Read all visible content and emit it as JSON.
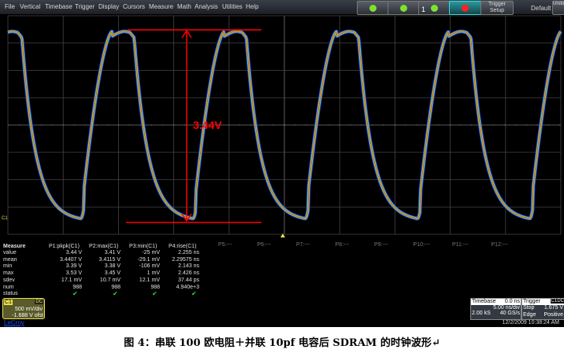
{
  "menu": [
    "File",
    "Vertical",
    "Timebase",
    "Trigger",
    "Display",
    "Cursors",
    "Measure",
    "Math",
    "Analysis",
    "Utilities",
    "Help"
  ],
  "toolbar": {
    "trigger_setup": "Trigger Setup",
    "default": "Default",
    "undo": "Undo",
    "button1_num": "1"
  },
  "annotation": {
    "label": "3.44V",
    "color": "#ff0000"
  },
  "channel_marker": "C1",
  "measure": {
    "headers": [
      "Measure",
      "P1:pkpk(C1)",
      "P2:max(C1)",
      "P3:min(C1)",
      "P4:rise(C1)"
    ],
    "rows": [
      [
        "value",
        "3.44 V",
        "3.41 V",
        "-25 mV",
        "2.255 ns"
      ],
      [
        "mean",
        "3.4407 V",
        "3.4115 V",
        "-29.1 mV",
        "2.29575 ns"
      ],
      [
        "min",
        "3.39 V",
        "3.38 V",
        "-106 mV",
        "2.143 ns"
      ],
      [
        "max",
        "3.53 V",
        "3.45 V",
        "1 mV",
        "2.426 ns"
      ],
      [
        "sdev",
        "17.1 mV",
        "10.7 mV",
        "12.1 mV",
        "37.44 ps"
      ],
      [
        "num",
        "988",
        "988",
        "988",
        "4.940e+3"
      ]
    ],
    "status_label": "status",
    "status_mark": "✔",
    "empty_params": [
      "P5:---",
      "P6:---",
      "P7:---",
      "P8:---",
      "P9:---",
      "P10:---",
      "P11:---",
      "P12:---"
    ]
  },
  "channel": {
    "name": "C1",
    "coupling": "DC",
    "scale": "500 mV/div",
    "offset": "-1.688 V ofst",
    "color": "#e8e04a"
  },
  "brand": "LeCroy",
  "timebase": {
    "label": "Timebase",
    "delay": "0.0 ns",
    "scale": "5.00 ns/div",
    "samples": "2.00 kS",
    "rate": "40 GS/s"
  },
  "trigger": {
    "label": "Trigger",
    "src": "C1",
    "coupling": "DC",
    "mode": "Stop",
    "level": "1.675 V",
    "type": "Edge",
    "slope": "Positive"
  },
  "datetime": "12/2/2009 10:38:24 AM",
  "caption": "图 4：串联 100 欧电阻＋并联 10pf 电容后 SDRAM 的时钟波形↵"
}
